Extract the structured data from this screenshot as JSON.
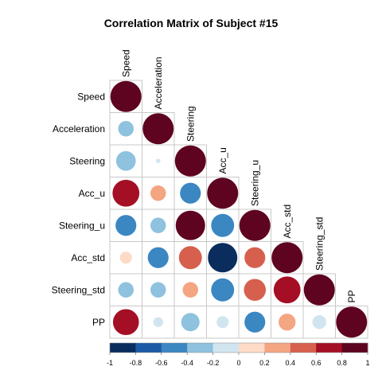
{
  "chart_data": {
    "type": "heatmap",
    "title": "Correlation Matrix of Subject #15",
    "layout": "lower-triangle",
    "glyph": "circle",
    "variables": [
      "Speed",
      "Acceleration",
      "Steering",
      "Acc_u",
      "Steering_u",
      "Acc_std",
      "Steering_std",
      "PP"
    ],
    "matrix": [
      [
        1.0,
        0.25,
        0.4,
        0.75,
        0.45,
        0.15,
        0.25,
        0.7
      ],
      [
        0.25,
        1.0,
        0.02,
        0.25,
        0.25,
        0.45,
        0.25,
        0.1
      ],
      [
        0.4,
        0.02,
        1.0,
        0.45,
        0.9,
        0.55,
        0.25,
        0.35
      ],
      [
        0.75,
        0.25,
        0.45,
        1.0,
        0.55,
        0.9,
        0.55,
        0.15
      ],
      [
        0.45,
        0.25,
        0.9,
        0.55,
        1.0,
        0.45,
        0.5,
        0.45
      ],
      [
        0.15,
        0.45,
        0.55,
        0.9,
        0.45,
        1.0,
        0.75,
        0.3
      ],
      [
        0.25,
        0.25,
        0.25,
        0.55,
        0.5,
        0.75,
        1.0,
        0.2
      ],
      [
        0.7,
        0.1,
        0.35,
        0.15,
        0.45,
        0.3,
        0.2,
        1.0
      ]
    ],
    "signs": [
      [
        1,
        -1,
        -1,
        1,
        -1,
        1,
        -1,
        1
      ],
      [
        -1,
        1,
        -1,
        1,
        -1,
        -1,
        -1,
        -1
      ],
      [
        -1,
        -1,
        1,
        -1,
        1,
        1,
        1,
        -1
      ],
      [
        1,
        1,
        -1,
        1,
        -1,
        -1,
        -1,
        -1
      ],
      [
        -1,
        -1,
        1,
        -1,
        1,
        1,
        1,
        -1
      ],
      [
        1,
        -1,
        1,
        -1,
        1,
        1,
        1,
        1
      ],
      [
        -1,
        -1,
        1,
        -1,
        1,
        1,
        1,
        -1
      ],
      [
        1,
        -1,
        -1,
        -1,
        -1,
        1,
        -1,
        1
      ]
    ],
    "color_scale": {
      "range": [
        -1,
        1
      ],
      "ticks": [
        "-1",
        "-0.8",
        "-0.6",
        "-0.4",
        "-0.2",
        "0",
        "0.2",
        "0.4",
        "0.6",
        "0.8",
        "1"
      ],
      "colors": [
        "#0a2d5e",
        "#1c5aa6",
        "#3b87c2",
        "#8ec2de",
        "#d1e5f0",
        "#fddbc7",
        "#f4a582",
        "#d6604d",
        "#a50f25",
        "#5e0320"
      ]
    },
    "grid": true,
    "legend": "bottom"
  }
}
